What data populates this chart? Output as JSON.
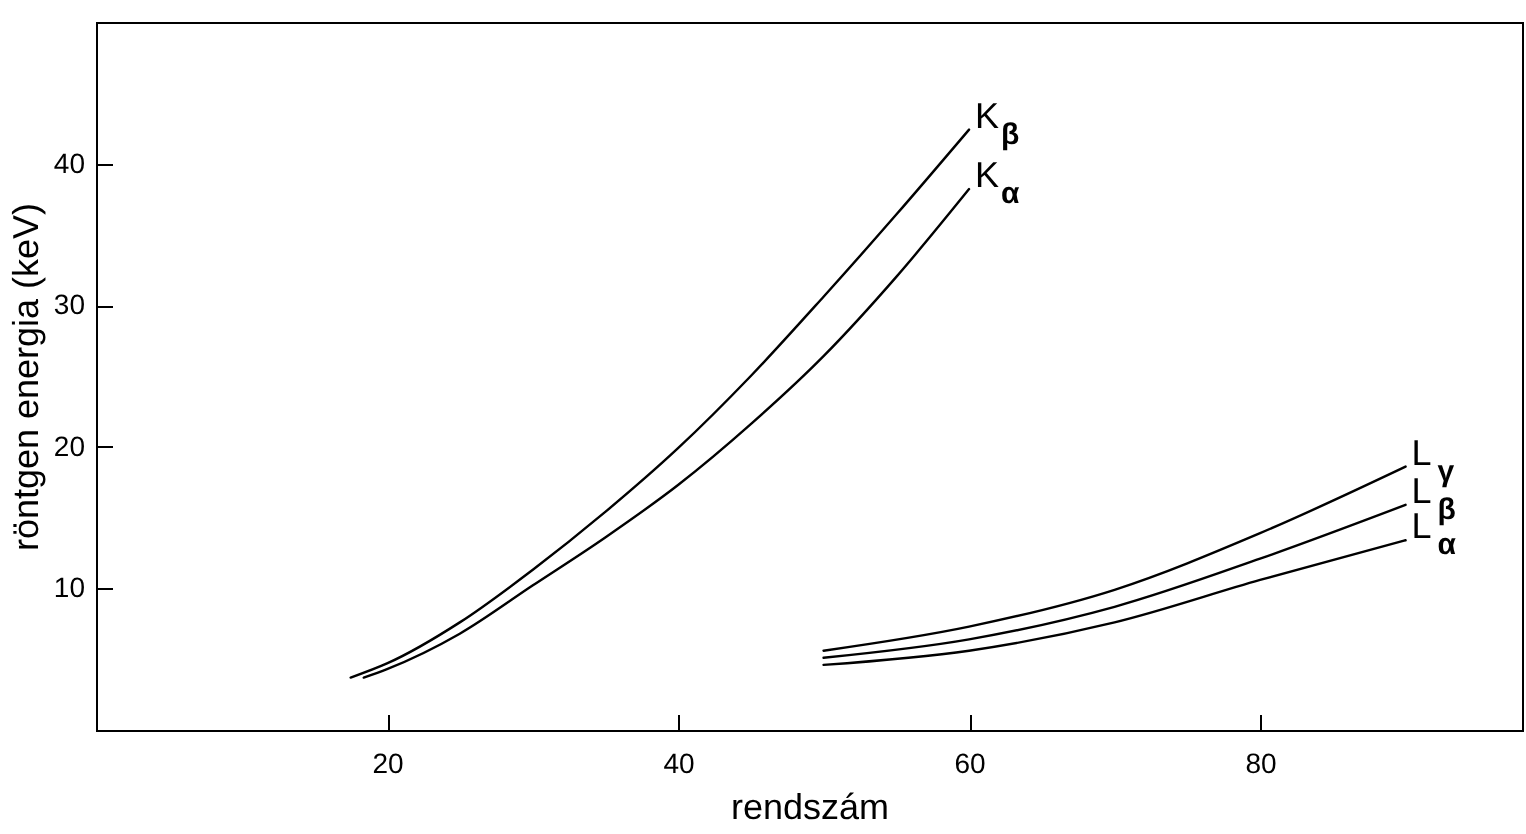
{
  "chart_data": {
    "type": "line",
    "xlabel": "rendszám",
    "ylabel": "röntgen energia (keV)",
    "xlim": [
      0,
      98
    ],
    "ylim": [
      0,
      50
    ],
    "xticks": [
      20,
      40,
      60,
      80
    ],
    "yticks": [
      10,
      20,
      30,
      40
    ],
    "grid": false,
    "legend": false,
    "marker": "none",
    "line_style": "solid",
    "series": [
      {
        "name": "K$_{β}$",
        "color": "#000000",
        "x": [
          17.5,
          20,
          25,
          30,
          35,
          40,
          45,
          50,
          55,
          60
        ],
        "values": [
          3.7,
          4.7,
          7.6,
          11.3,
          15.4,
          19.9,
          25,
          30.6,
          36.4,
          42.4
        ]
      },
      {
        "name": "K$_{α}$",
        "color": "#000000",
        "x": [
          18.4,
          20,
          25,
          30,
          35,
          40,
          45,
          50,
          55,
          60
        ],
        "values": [
          3.7,
          4.3,
          6.8,
          10.2,
          13.6,
          17.3,
          21.6,
          26.4,
          32,
          38.2
        ]
      },
      {
        "name": "L$_{γ}$",
        "color": "#000000",
        "x": [
          50,
          60,
          70,
          80,
          90
        ],
        "values": [
          5.6,
          7.3,
          9.9,
          13.9,
          18.6
        ]
      },
      {
        "name": "L$_{β}$",
        "color": "#000000",
        "x": [
          50,
          60,
          70,
          80,
          90
        ],
        "values": [
          5.1,
          6.4,
          8.7,
          12.1,
          15.9
        ]
      },
      {
        "name": "L$_{α}$",
        "color": "#000000",
        "x": [
          50,
          60,
          70,
          80,
          90
        ],
        "values": [
          4.6,
          5.6,
          7.6,
          10.6,
          13.4
        ]
      }
    ]
  }
}
